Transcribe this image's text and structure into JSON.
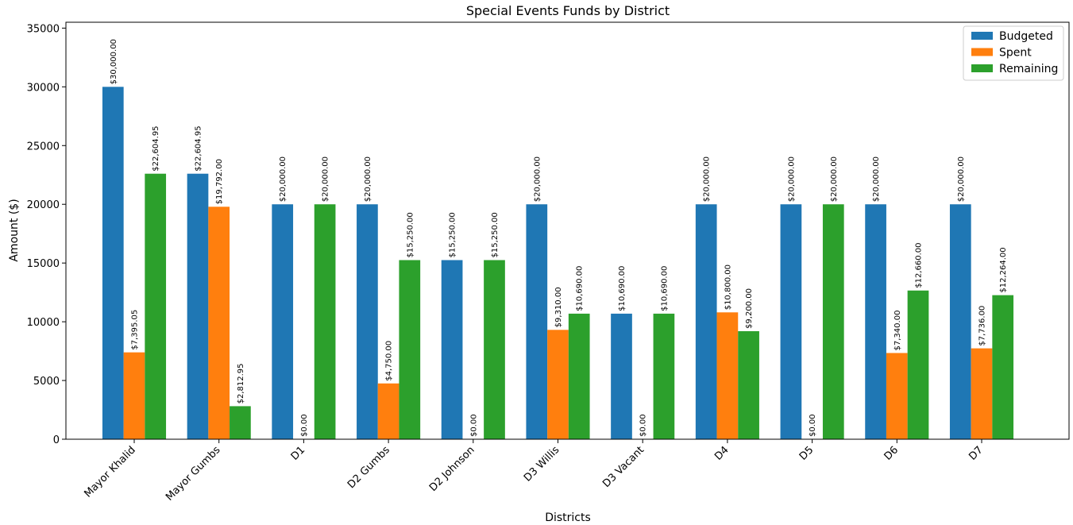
{
  "chart_data": {
    "type": "bar",
    "title": "Special Events Funds by District",
    "xlabel": "Districts",
    "ylabel": "Amount ($)",
    "ylim": [
      0,
      35500
    ],
    "yticks": [
      0,
      5000,
      10000,
      15000,
      20000,
      25000,
      30000,
      35000
    ],
    "categories": [
      "Mayor Khalid",
      "Mayor Gumbs",
      "D1",
      "D2 Gumbs",
      "D2 Johnson",
      "D3 Willis",
      "D3 Vacant",
      "D4",
      "D5",
      "D6",
      "D7"
    ],
    "series": [
      {
        "name": "Budgeted",
        "color": "#1f77b4",
        "values": [
          30000,
          22604.95,
          20000,
          20000,
          15250,
          20000,
          10690,
          20000,
          20000,
          20000,
          20000
        ],
        "labels": [
          "$30,000.00",
          "$22,604.95",
          "$20,000.00",
          "$20,000.00",
          "$15,250.00",
          "$20,000.00",
          "$10,690.00",
          "$20,000.00",
          "$20,000.00",
          "$20,000.00",
          "$20,000.00"
        ]
      },
      {
        "name": "Spent",
        "color": "#ff7f0e",
        "values": [
          7395.05,
          19792,
          0,
          4750,
          0,
          9310,
          0,
          10800,
          0,
          7340,
          7736
        ],
        "labels": [
          "$7,395.05",
          "$19,792.00",
          "$0.00",
          "$4,750.00",
          "$0.00",
          "$9,310.00",
          "$0.00",
          "$10,800.00",
          "$0.00",
          "$7,340.00",
          "$7,736.00"
        ]
      },
      {
        "name": "Remaining",
        "color": "#2ca02c",
        "values": [
          22604.95,
          2812.95,
          20000,
          15250,
          15250,
          10690,
          10690,
          9200,
          20000,
          12660,
          12264
        ],
        "labels": [
          "$22,604.95",
          "$2,812.95",
          "$20,000.00",
          "$15,250.00",
          "$15,250.00",
          "$10,690.00",
          "$10,690.00",
          "$9,200.00",
          "$20,000.00",
          "$12,660.00",
          "$12,264.00"
        ]
      }
    ],
    "legend_position": "top-right",
    "grid": false
  }
}
